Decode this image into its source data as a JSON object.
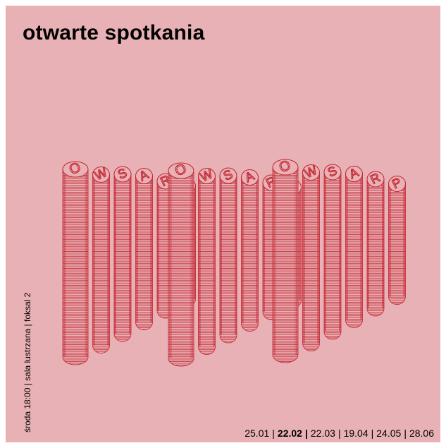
{
  "colors": {
    "background": "#e8b1b5",
    "stroke": "#c2232f",
    "text": "#000000"
  },
  "title": "otwarte spotkania",
  "side_info": "środa 18:00 | sala lustrzana | foksal 2",
  "artwork": {
    "text": "OWSARP",
    "repeat": 3
  },
  "dates": [
    {
      "label": "25.01",
      "active": false
    },
    {
      "label": "22.02",
      "active": true
    },
    {
      "label": "22.03",
      "active": false
    },
    {
      "label": "19.04",
      "active": false
    },
    {
      "label": "24.05",
      "active": false
    },
    {
      "label": "28.06",
      "active": false
    }
  ]
}
